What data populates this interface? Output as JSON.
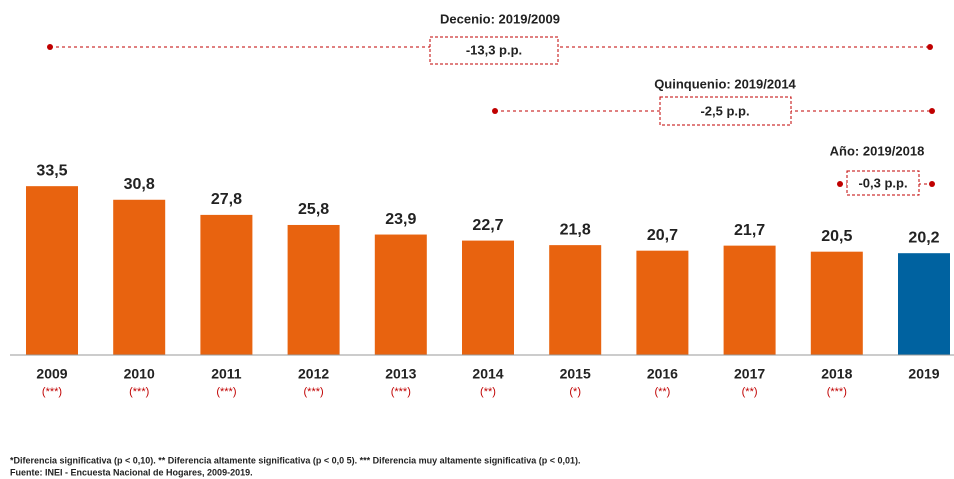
{
  "chart_data": {
    "type": "bar",
    "categories": [
      "2009",
      "2010",
      "2011",
      "2012",
      "2013",
      "2014",
      "2015",
      "2016",
      "2017",
      "2018",
      "2019"
    ],
    "values": [
      33.5,
      30.8,
      27.8,
      25.8,
      23.9,
      22.7,
      21.8,
      20.7,
      21.7,
      20.5,
      20.2
    ],
    "value_labels": [
      "33,5",
      "30,8",
      "27,8",
      "25,8",
      "23,9",
      "22,7",
      "21,8",
      "20,7",
      "21,7",
      "20,5",
      "20,2"
    ],
    "significance": [
      "(***)",
      "(***)",
      "(***)",
      "(***)",
      "(***)",
      "(**)",
      "(*)",
      "(**)",
      "(**)",
      "(***)",
      null
    ],
    "colors": [
      "#e8630f",
      "#e8630f",
      "#e8630f",
      "#e8630f",
      "#e8630f",
      "#e8630f",
      "#e8630f",
      "#e8630f",
      "#e8630f",
      "#e8630f",
      "#0062a0"
    ],
    "comparisons": [
      {
        "title": "Decenio: 2019/2009",
        "difference": "-13,3 p.p."
      },
      {
        "title": "Quinquenio: 2019/2014",
        "difference": "-2,5 p.p."
      },
      {
        "title": "Año: 2019/2018",
        "difference": "-0,3 p.p."
      }
    ],
    "footnotes": [
      "*Diferencia  significativa  (p <  0,10).  ** Diferencia  altamente  significativa  (p < 0,0 5). *** Diferencia  muy  altamente  significativa  (p < 0,01).",
      "Fuente: INEI - Encuesta  Nacional  de Hogares,  2009-2019."
    ]
  }
}
